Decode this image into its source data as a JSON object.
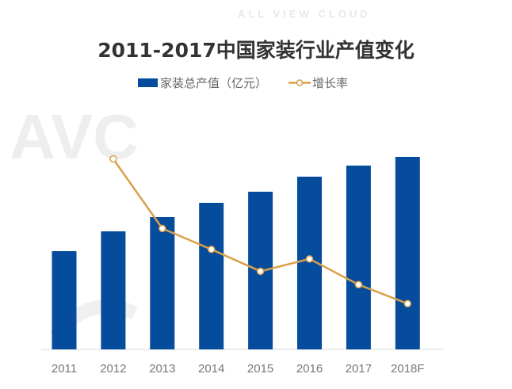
{
  "chart_data": {
    "type": "bar+line",
    "title": "2011-2017中国家装行业产值变化",
    "categories": [
      "2011",
      "2012",
      "2013",
      "2014",
      "2015",
      "2016",
      "2017",
      "2018F"
    ],
    "series": [
      {
        "name": "家装总产值（亿元）",
        "type": "bar",
        "color": "#064c9c",
        "values": [
          12400,
          14900,
          16700,
          18500,
          19900,
          21800,
          23200,
          24300
        ]
      },
      {
        "name": "增长率",
        "type": "line",
        "color": "#d9a04a",
        "unit": "%",
        "values": [
          null,
          20.0,
          12.7,
          10.5,
          8.2,
          9.5,
          6.8,
          4.8
        ]
      }
    ],
    "ylim": [
      0,
      25000
    ],
    "y2lim": [
      0,
      20.8
    ],
    "xlabel": "",
    "ylabel": "",
    "grid": false,
    "legend_position": "top-center",
    "axis_labels_shown": false
  },
  "watermark": {
    "text": "AVC",
    "subtext": "ALL VIEW CLOUD"
  }
}
